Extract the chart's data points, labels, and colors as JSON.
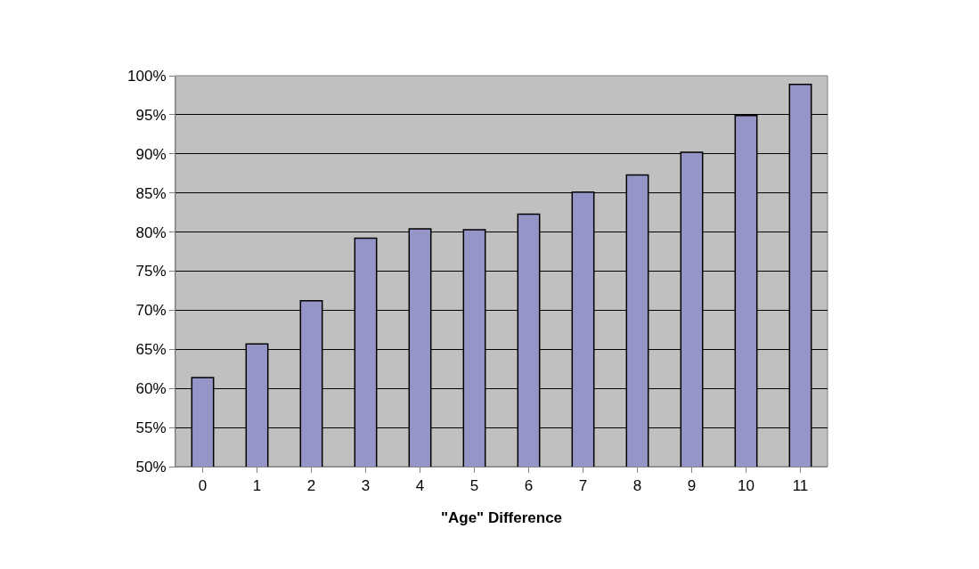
{
  "chart_data": {
    "type": "bar",
    "xlabel": "\"Age\" Difference",
    "categories": [
      "0",
      "1",
      "2",
      "3",
      "4",
      "5",
      "6",
      "7",
      "8",
      "9",
      "10",
      "11"
    ],
    "series": [
      {
        "color": "#9595c8",
        "values": [
          61.4,
          65.7,
          71.2,
          79.2,
          80.4,
          80.3,
          82.3,
          85.1,
          87.3,
          90.2,
          94.9,
          98.9
        ]
      }
    ],
    "ylim": [
      50,
      100
    ],
    "yticks": [
      {
        "value": 50,
        "label": "50%"
      },
      {
        "value": 55,
        "label": "55%"
      },
      {
        "value": 60,
        "label": "60%"
      },
      {
        "value": 65,
        "label": "65%"
      },
      {
        "value": 70,
        "label": "70%"
      },
      {
        "value": 75,
        "label": "75%"
      },
      {
        "value": 80,
        "label": "80%"
      },
      {
        "value": 85,
        "label": "85%"
      },
      {
        "value": 90,
        "label": "90%"
      },
      {
        "value": 95,
        "label": "95%"
      },
      {
        "value": 100,
        "label": "100%"
      }
    ],
    "grid": "y",
    "legend": false
  }
}
